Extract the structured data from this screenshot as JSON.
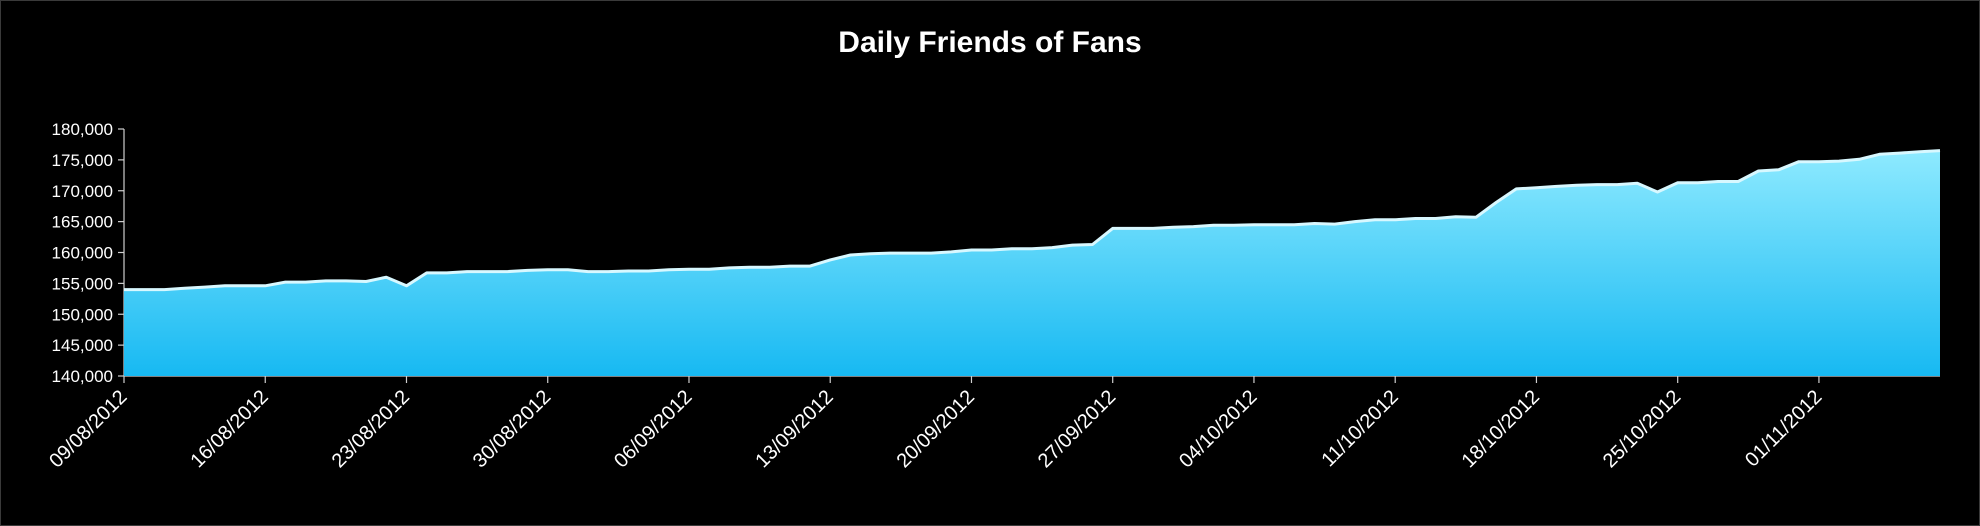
{
  "chart_data": {
    "type": "area",
    "title": "Daily Friends of Fans",
    "xlabel": "",
    "ylabel": "",
    "ylim": [
      140000,
      180000
    ],
    "y_ticks": [
      140000,
      145000,
      150000,
      155000,
      160000,
      165000,
      170000,
      175000,
      180000
    ],
    "y_tick_labels": [
      "140,000",
      "145,000",
      "150,000",
      "155,000",
      "160,000",
      "165,000",
      "170,000",
      "175,000",
      "180,000"
    ],
    "x_start": "09/08/2012",
    "x_end": "07/11/2012",
    "x_tick_labels": [
      "09/08/2012",
      "16/08/2012",
      "23/08/2012",
      "30/08/2012",
      "06/09/2012",
      "13/09/2012",
      "20/09/2012",
      "27/09/2012",
      "04/10/2012",
      "11/10/2012",
      "18/10/2012",
      "25/10/2012",
      "01/11/2012"
    ],
    "grid": false,
    "legend": "none",
    "fill_color_top": "#8eeaff",
    "fill_color_bottom": "#17b9f2",
    "series": [
      {
        "x": [
          "09/08/2012",
          "10/08/2012",
          "11/08/2012",
          "12/08/2012",
          "13/08/2012",
          "14/08/2012",
          "15/08/2012",
          "16/08/2012",
          "17/08/2012",
          "18/08/2012",
          "19/08/2012",
          "20/08/2012",
          "21/08/2012",
          "22/08/2012",
          "23/08/2012",
          "24/08/2012",
          "25/08/2012",
          "26/08/2012",
          "27/08/2012",
          "28/08/2012",
          "29/08/2012",
          "30/08/2012",
          "31/08/2012",
          "01/09/2012",
          "02/09/2012",
          "03/09/2012",
          "04/09/2012",
          "05/09/2012",
          "06/09/2012",
          "07/09/2012",
          "08/09/2012",
          "09/09/2012",
          "10/09/2012",
          "11/09/2012",
          "12/09/2012",
          "13/09/2012",
          "14/09/2012",
          "15/09/2012",
          "16/09/2012",
          "17/09/2012",
          "18/09/2012",
          "19/09/2012",
          "20/09/2012",
          "21/09/2012",
          "22/09/2012",
          "23/09/2012",
          "24/09/2012",
          "25/09/2012",
          "26/09/2012",
          "27/09/2012",
          "28/09/2012",
          "29/09/2012",
          "30/09/2012",
          "01/10/2012",
          "02/10/2012",
          "03/10/2012",
          "04/10/2012",
          "05/10/2012",
          "06/10/2012",
          "07/10/2012",
          "08/10/2012",
          "09/10/2012",
          "10/10/2012",
          "11/10/2012",
          "12/10/2012",
          "13/10/2012",
          "14/10/2012",
          "15/10/2012",
          "16/10/2012",
          "17/10/2012",
          "18/10/2012",
          "19/10/2012",
          "20/10/2012",
          "21/10/2012",
          "22/10/2012",
          "23/10/2012",
          "24/10/2012",
          "25/10/2012",
          "26/10/2012",
          "27/10/2012",
          "28/10/2012",
          "29/10/2012",
          "30/10/2012",
          "31/10/2012",
          "01/11/2012",
          "02/11/2012",
          "03/11/2012",
          "04/11/2012",
          "05/11/2012",
          "06/11/2012",
          "07/11/2012"
        ],
        "values": [
          154000,
          154000,
          154000,
          154200,
          154400,
          154600,
          154600,
          154600,
          155200,
          155200,
          155400,
          155400,
          155300,
          156000,
          154600,
          156700,
          156700,
          156900,
          156900,
          156900,
          157100,
          157200,
          157200,
          156900,
          156900,
          157000,
          157000,
          157200,
          157300,
          157300,
          157500,
          157600,
          157600,
          157800,
          157800,
          158800,
          159600,
          159800,
          159900,
          159900,
          159900,
          160100,
          160400,
          160400,
          160600,
          160600,
          160800,
          161200,
          161300,
          163900,
          163900,
          163900,
          164100,
          164200,
          164400,
          164400,
          164500,
          164500,
          164500,
          164700,
          164600,
          165000,
          165300,
          165300,
          165500,
          165500,
          165800,
          165700,
          168100,
          170300,
          170500,
          170700,
          170900,
          171000,
          171000,
          171200,
          169800,
          171300,
          171300,
          171500,
          171500,
          173200,
          173400,
          174700,
          174700,
          174800,
          175100,
          175900,
          176100,
          176300,
          176500
        ]
      }
    ]
  }
}
